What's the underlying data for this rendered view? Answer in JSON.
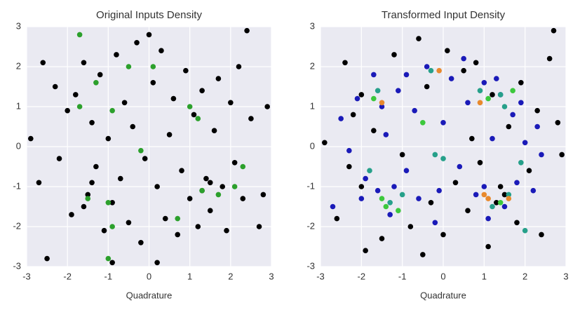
{
  "chart_data": [
    {
      "type": "scatter",
      "title": "Original Inputs Density",
      "x_label": "Quadrature",
      "xlim": [
        -3,
        3
      ],
      "ylim": [
        -3,
        3
      ],
      "xticks": [
        -3,
        -2,
        -1,
        0,
        1,
        2,
        3
      ],
      "yticks": [
        -3,
        -2,
        -1,
        0,
        1,
        2,
        3
      ],
      "grid": true,
      "series": [
        {
          "color": "#000000",
          "x": [
            -2.9,
            -2.7,
            -2.5,
            -2.3,
            -2.2,
            -2.0,
            -1.9,
            -1.8,
            -1.6,
            -1.5,
            -1.4,
            -1.3,
            -1.2,
            -1.1,
            -1.0,
            -0.9,
            -0.8,
            -0.7,
            -0.6,
            -0.5,
            -0.4,
            -0.3,
            -0.2,
            -0.1,
            0.1,
            0.2,
            0.3,
            0.4,
            0.5,
            0.6,
            0.7,
            0.8,
            0.9,
            1.0,
            1.1,
            1.2,
            1.3,
            1.4,
            1.5,
            1.6,
            1.7,
            1.8,
            1.9,
            2.0,
            2.1,
            2.2,
            2.3,
            2.5,
            2.7,
            2.9,
            -2.6,
            0.0,
            1.5,
            1.3,
            -1.4,
            -1.6,
            2.4,
            -0.9,
            0.2,
            2.8
          ],
          "values": [
            0.2,
            -0.9,
            -2.8,
            1.5,
            -0.3,
            0.9,
            -1.7,
            1.3,
            2.1,
            -1.2,
            0.6,
            -0.5,
            1.8,
            -2.1,
            0.2,
            -1.4,
            2.3,
            -0.8,
            1.1,
            -1.9,
            0.5,
            2.6,
            -2.4,
            -0.3,
            1.6,
            -1.0,
            2.4,
            -1.8,
            0.3,
            1.2,
            -2.2,
            -0.6,
            1.9,
            -1.3,
            0.8,
            -2.0,
            1.4,
            -0.8,
            -1.6,
            0.4,
            1.7,
            -1.0,
            -2.1,
            1.1,
            -0.4,
            2.0,
            -1.3,
            0.7,
            -2.0,
            1.0,
            2.1,
            2.8,
            -0.9,
            -1.1,
            -0.9,
            -1.5,
            2.9,
            -2.9,
            -2.9,
            -1.2
          ]
        },
        {
          "color": "#2ca02c",
          "x": [
            -1.7,
            -1.7,
            -1.0,
            -1.5,
            -1.0,
            -0.9,
            -0.5,
            0.1,
            -0.2,
            0.7,
            1.0,
            1.3,
            1.7,
            2.1,
            2.3,
            1.2,
            -1.3,
            -0.9
          ],
          "values": [
            2.8,
            1.0,
            -2.8,
            -1.3,
            -1.4,
            -2.0,
            2.0,
            2.0,
            -0.1,
            -1.8,
            1.0,
            -1.1,
            -1.2,
            -1.0,
            -0.5,
            0.7,
            1.6,
            0.9
          ]
        }
      ]
    },
    {
      "type": "scatter",
      "title": "Transformed Input Density",
      "x_label": "Quadrature",
      "xlim": [
        -3,
        3
      ],
      "ylim": [
        -3,
        3
      ],
      "xticks": [
        -3,
        -2,
        -1,
        0,
        1,
        2,
        3
      ],
      "yticks": [
        -3,
        -2,
        -1,
        0,
        1,
        2,
        3
      ],
      "grid": true,
      "series": [
        {
          "color": "#000000",
          "x": [
            -2.9,
            -2.6,
            -2.4,
            -2.2,
            -2.0,
            -1.9,
            -1.5,
            -1.2,
            -1.0,
            -0.8,
            -0.6,
            -0.4,
            -0.3,
            0.0,
            0.1,
            0.3,
            0.5,
            0.6,
            0.8,
            0.9,
            1.1,
            1.2,
            1.4,
            1.6,
            1.8,
            1.9,
            2.1,
            2.3,
            2.4,
            2.6,
            2.7,
            2.8,
            2.9,
            -2.3,
            -1.7,
            -0.5,
            0.7,
            1.3,
            -2.0,
            1.5
          ],
          "values": [
            0.1,
            -1.8,
            2.1,
            0.8,
            -1.0,
            -2.6,
            -2.3,
            2.3,
            -0.2,
            -2.0,
            2.7,
            1.5,
            -1.4,
            -2.2,
            2.4,
            -0.9,
            1.9,
            -1.6,
            2.1,
            -0.4,
            -2.5,
            1.3,
            -1.0,
            0.5,
            -1.9,
            1.6,
            -0.6,
            0.9,
            -2.2,
            2.2,
            2.9,
            0.6,
            -0.2,
            -0.5,
            0.4,
            -2.7,
            0.2,
            -1.4,
            1.3,
            -1.2
          ]
        },
        {
          "color": "#1a1ab8",
          "x": [
            -2.7,
            -2.5,
            -2.3,
            -2.1,
            -1.9,
            -1.7,
            -1.6,
            -1.4,
            -1.3,
            -1.1,
            -0.9,
            -0.7,
            -0.6,
            -0.4,
            -0.2,
            0.0,
            0.2,
            0.4,
            0.6,
            0.8,
            1.0,
            1.1,
            1.2,
            1.4,
            1.5,
            1.7,
            1.8,
            2.0,
            2.2,
            2.4,
            1.9,
            -1.5,
            -2.0,
            1.0,
            -1.2,
            0.5,
            -0.1,
            1.3,
            -0.9,
            2.3
          ],
          "values": [
            -1.5,
            0.7,
            -0.1,
            1.2,
            -0.8,
            1.8,
            -1.1,
            0.3,
            -1.7,
            1.4,
            -0.6,
            0.9,
            -1.3,
            2.0,
            -1.9,
            0.6,
            1.7,
            -0.5,
            1.1,
            -1.2,
            1.6,
            -1.8,
            0.2,
            1.3,
            -1.5,
            0.8,
            -0.9,
            0.1,
            -1.1,
            -0.2,
            1.1,
            1.0,
            -1.3,
            -1.0,
            -1.0,
            2.2,
            -1.1,
            1.7,
            1.8,
            0.5
          ]
        },
        {
          "color": "#26a08a",
          "x": [
            -1.6,
            -1.3,
            -1.0,
            -0.2,
            0.0,
            0.9,
            1.4,
            1.5,
            1.6,
            1.9,
            2.0,
            -0.3,
            -1.8,
            1.2
          ],
          "values": [
            1.4,
            -1.4,
            -1.2,
            -0.2,
            -0.3,
            1.4,
            1.3,
            1.0,
            -1.2,
            -0.4,
            -2.1,
            1.9,
            -0.6,
            -1.5
          ]
        },
        {
          "color": "#3cc83c",
          "x": [
            -1.7,
            -1.5,
            -1.4,
            -1.1,
            1.1,
            1.7,
            1.4,
            -0.5
          ],
          "values": [
            1.2,
            -1.3,
            -1.5,
            -1.6,
            1.2,
            1.4,
            -1.4,
            0.6
          ]
        },
        {
          "color": "#e8892c",
          "x": [
            -0.1,
            -1.5,
            0.9,
            1.0,
            1.1,
            1.6
          ],
          "values": [
            1.9,
            1.1,
            1.1,
            -1.2,
            -1.3,
            -1.3
          ]
        }
      ]
    }
  ]
}
